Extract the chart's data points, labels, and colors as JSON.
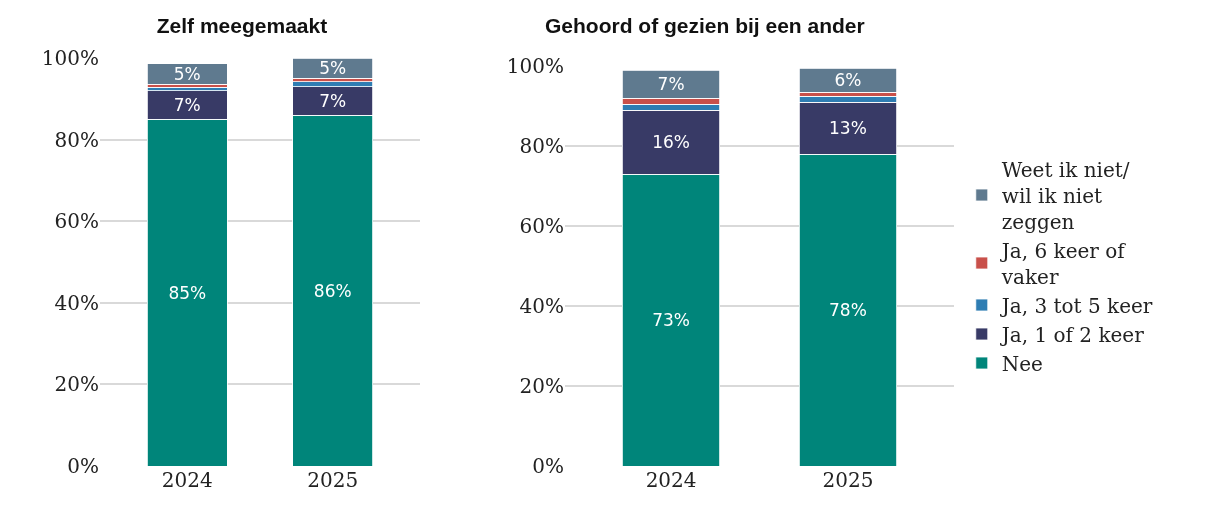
{
  "chart_data": [
    {
      "type": "bar",
      "title": "Zelf meegemaakt",
      "categories": [
        "2024",
        "2025"
      ],
      "stacked": true,
      "ylim": [
        0,
        100
      ],
      "yticks": [
        {
          "value": 0,
          "label": "0%"
        },
        {
          "value": 20,
          "label": "20%"
        },
        {
          "value": 40,
          "label": "40%"
        },
        {
          "value": 60,
          "label": "60%"
        },
        {
          "value": 80,
          "label": "80%"
        },
        {
          "value": 100,
          "label": "100%"
        }
      ],
      "grid": "y",
      "legend": false,
      "series": [
        {
          "color": "#00857a",
          "values": [
            85,
            86
          ],
          "value_labels": [
            "85%",
            "86%"
          ]
        },
        {
          "color": "#383a66",
          "values": [
            7,
            7
          ],
          "value_labels": [
            "7%",
            "7%"
          ]
        },
        {
          "color": "#2e7db3",
          "values": [
            0.8,
            1.2
          ],
          "value_labels": [
            null,
            null
          ]
        },
        {
          "color": "#c9504a",
          "values": [
            0.8,
            0.8
          ],
          "value_labels": [
            null,
            null
          ]
        },
        {
          "color": "#5f7a8f",
          "values": [
            5,
            5
          ],
          "value_labels": [
            "5%",
            "5%"
          ]
        }
      ]
    },
    {
      "type": "bar",
      "title": "Gehoord of gezien bij een ander",
      "categories": [
        "2024",
        "2025"
      ],
      "stacked": true,
      "ylim": [
        0,
        100
      ],
      "yticks": [
        {
          "value": 0,
          "label": "0%"
        },
        {
          "value": 20,
          "label": "20%"
        },
        {
          "value": 40,
          "label": "40%"
        },
        {
          "value": 60,
          "label": "60%"
        },
        {
          "value": 80,
          "label": "80%"
        },
        {
          "value": 100,
          "label": "100%"
        }
      ],
      "grid": "y",
      "legend": "right",
      "series": [
        {
          "name": "Nee",
          "color": "#00857a",
          "values": [
            73,
            78
          ],
          "value_labels": [
            "73%",
            "78%"
          ]
        },
        {
          "name": "Ja, 1 of 2 keer",
          "color": "#383a66",
          "values": [
            16,
            13
          ],
          "value_labels": [
            "16%",
            "13%"
          ]
        },
        {
          "name": "Ja, 3 tot 5 keer",
          "color": "#2e7db3",
          "values": [
            1.5,
            1.5
          ],
          "value_labels": [
            null,
            null
          ]
        },
        {
          "name": "Ja, 6 keer of vaker",
          "color": "#c9504a",
          "values": [
            1.5,
            1
          ],
          "value_labels": [
            null,
            null
          ]
        },
        {
          "name": "Weet ik niet/ wil ik niet zeggen",
          "color": "#5f7a8f",
          "values": [
            7,
            6
          ],
          "value_labels": [
            "7%",
            "6%"
          ]
        }
      ]
    }
  ]
}
